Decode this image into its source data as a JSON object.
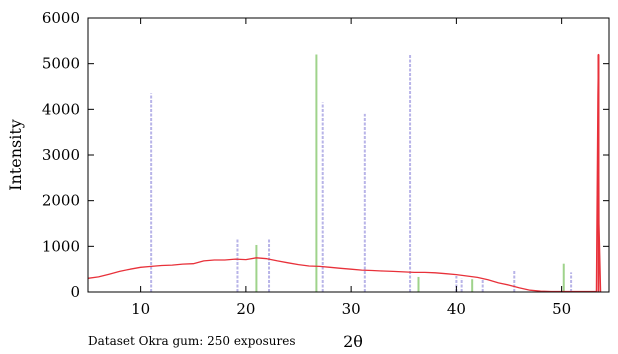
{
  "chart_data": {
    "type": "line",
    "xlabel": "2θ",
    "ylabel": "Intensity",
    "footnote": "Dataset Okra gum: 250 exposures",
    "xlim": [
      5,
      54.5
    ],
    "ylim": [
      0,
      6000
    ],
    "xticks": [
      10,
      20,
      30,
      40,
      50
    ],
    "yticks": [
      0,
      1000,
      2000,
      3000,
      4000,
      5000,
      6000
    ],
    "grid": false,
    "series": [
      {
        "color": "#e8313a",
        "x": [
          5,
          6,
          7,
          8,
          9,
          10,
          11,
          12,
          13,
          14,
          15,
          16,
          17,
          18,
          19,
          20,
          21,
          22,
          23,
          24,
          25,
          26,
          27,
          28,
          29,
          30,
          31,
          32,
          33,
          34,
          35,
          36,
          37,
          38,
          39,
          40,
          41,
          42,
          43,
          44,
          45,
          46,
          47,
          48,
          49,
          50,
          51,
          52,
          53,
          53.3,
          53.45,
          53.5,
          53.55,
          53.7
        ],
        "values": [
          300,
          330,
          390,
          450,
          500,
          540,
          560,
          580,
          590,
          610,
          620,
          680,
          700,
          700,
          720,
          710,
          750,
          730,
          680,
          640,
          600,
          570,
          560,
          540,
          520,
          500,
          480,
          470,
          460,
          450,
          440,
          430,
          430,
          420,
          400,
          380,
          350,
          320,
          270,
          200,
          150,
          90,
          40,
          20,
          10,
          10,
          10,
          10,
          10,
          10,
          4300,
          5200,
          1500,
          0
        ]
      }
    ],
    "reference_lines": [
      {
        "x": 11.0,
        "value": 4350,
        "color": "#b8b4e8"
      },
      {
        "x": 19.2,
        "value": 1150,
        "color": "#b8b4e8"
      },
      {
        "x": 21.0,
        "value": 1030,
        "color": "#9fd38b"
      },
      {
        "x": 22.2,
        "value": 1150,
        "color": "#b8b4e8"
      },
      {
        "x": 26.7,
        "value": 5200,
        "color": "#9fd38b"
      },
      {
        "x": 27.3,
        "value": 4150,
        "color": "#b8b4e8"
      },
      {
        "x": 31.3,
        "value": 3900,
        "color": "#b8b4e8"
      },
      {
        "x": 35.6,
        "value": 5200,
        "color": "#b8b4e8"
      },
      {
        "x": 36.4,
        "value": 330,
        "color": "#9fd38b"
      },
      {
        "x": 40.0,
        "value": 350,
        "color": "#b8b4e8"
      },
      {
        "x": 40.5,
        "value": 300,
        "color": "#b8b4e8"
      },
      {
        "x": 41.5,
        "value": 280,
        "color": "#9fd38b"
      },
      {
        "x": 42.5,
        "value": 300,
        "color": "#b8b4e8"
      },
      {
        "x": 45.5,
        "value": 470,
        "color": "#b8b4e8"
      },
      {
        "x": 50.2,
        "value": 620,
        "color": "#9fd38b"
      },
      {
        "x": 50.9,
        "value": 430,
        "color": "#b8b4e8"
      },
      {
        "x": 53.5,
        "value": 5200,
        "color": "#e8313a"
      }
    ]
  }
}
